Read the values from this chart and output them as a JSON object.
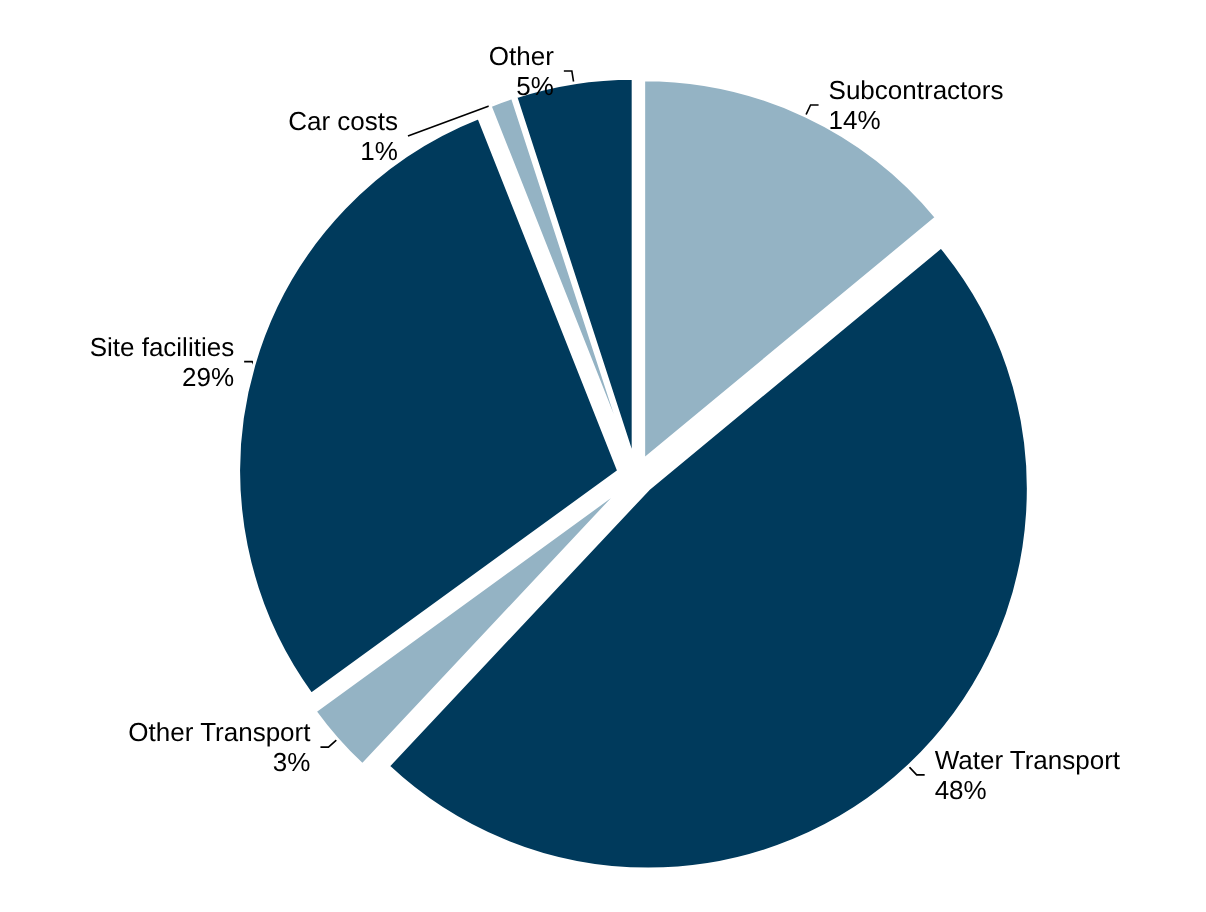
{
  "chart_data": {
    "type": "pie",
    "categories": [
      "Subcontractors",
      "Water Transport",
      "Other Transport",
      "Site facilities",
      "Car costs",
      "Other"
    ],
    "values": [
      14,
      48,
      3,
      29,
      1,
      5
    ],
    "value_labels": [
      "14%",
      "48%",
      "3%",
      "29%",
      "1%",
      "5%"
    ],
    "colors": [
      "#94b3c4",
      "#003a5c",
      "#94b3c4",
      "#003a5c",
      "#94b3c4",
      "#003a5c"
    ]
  }
}
